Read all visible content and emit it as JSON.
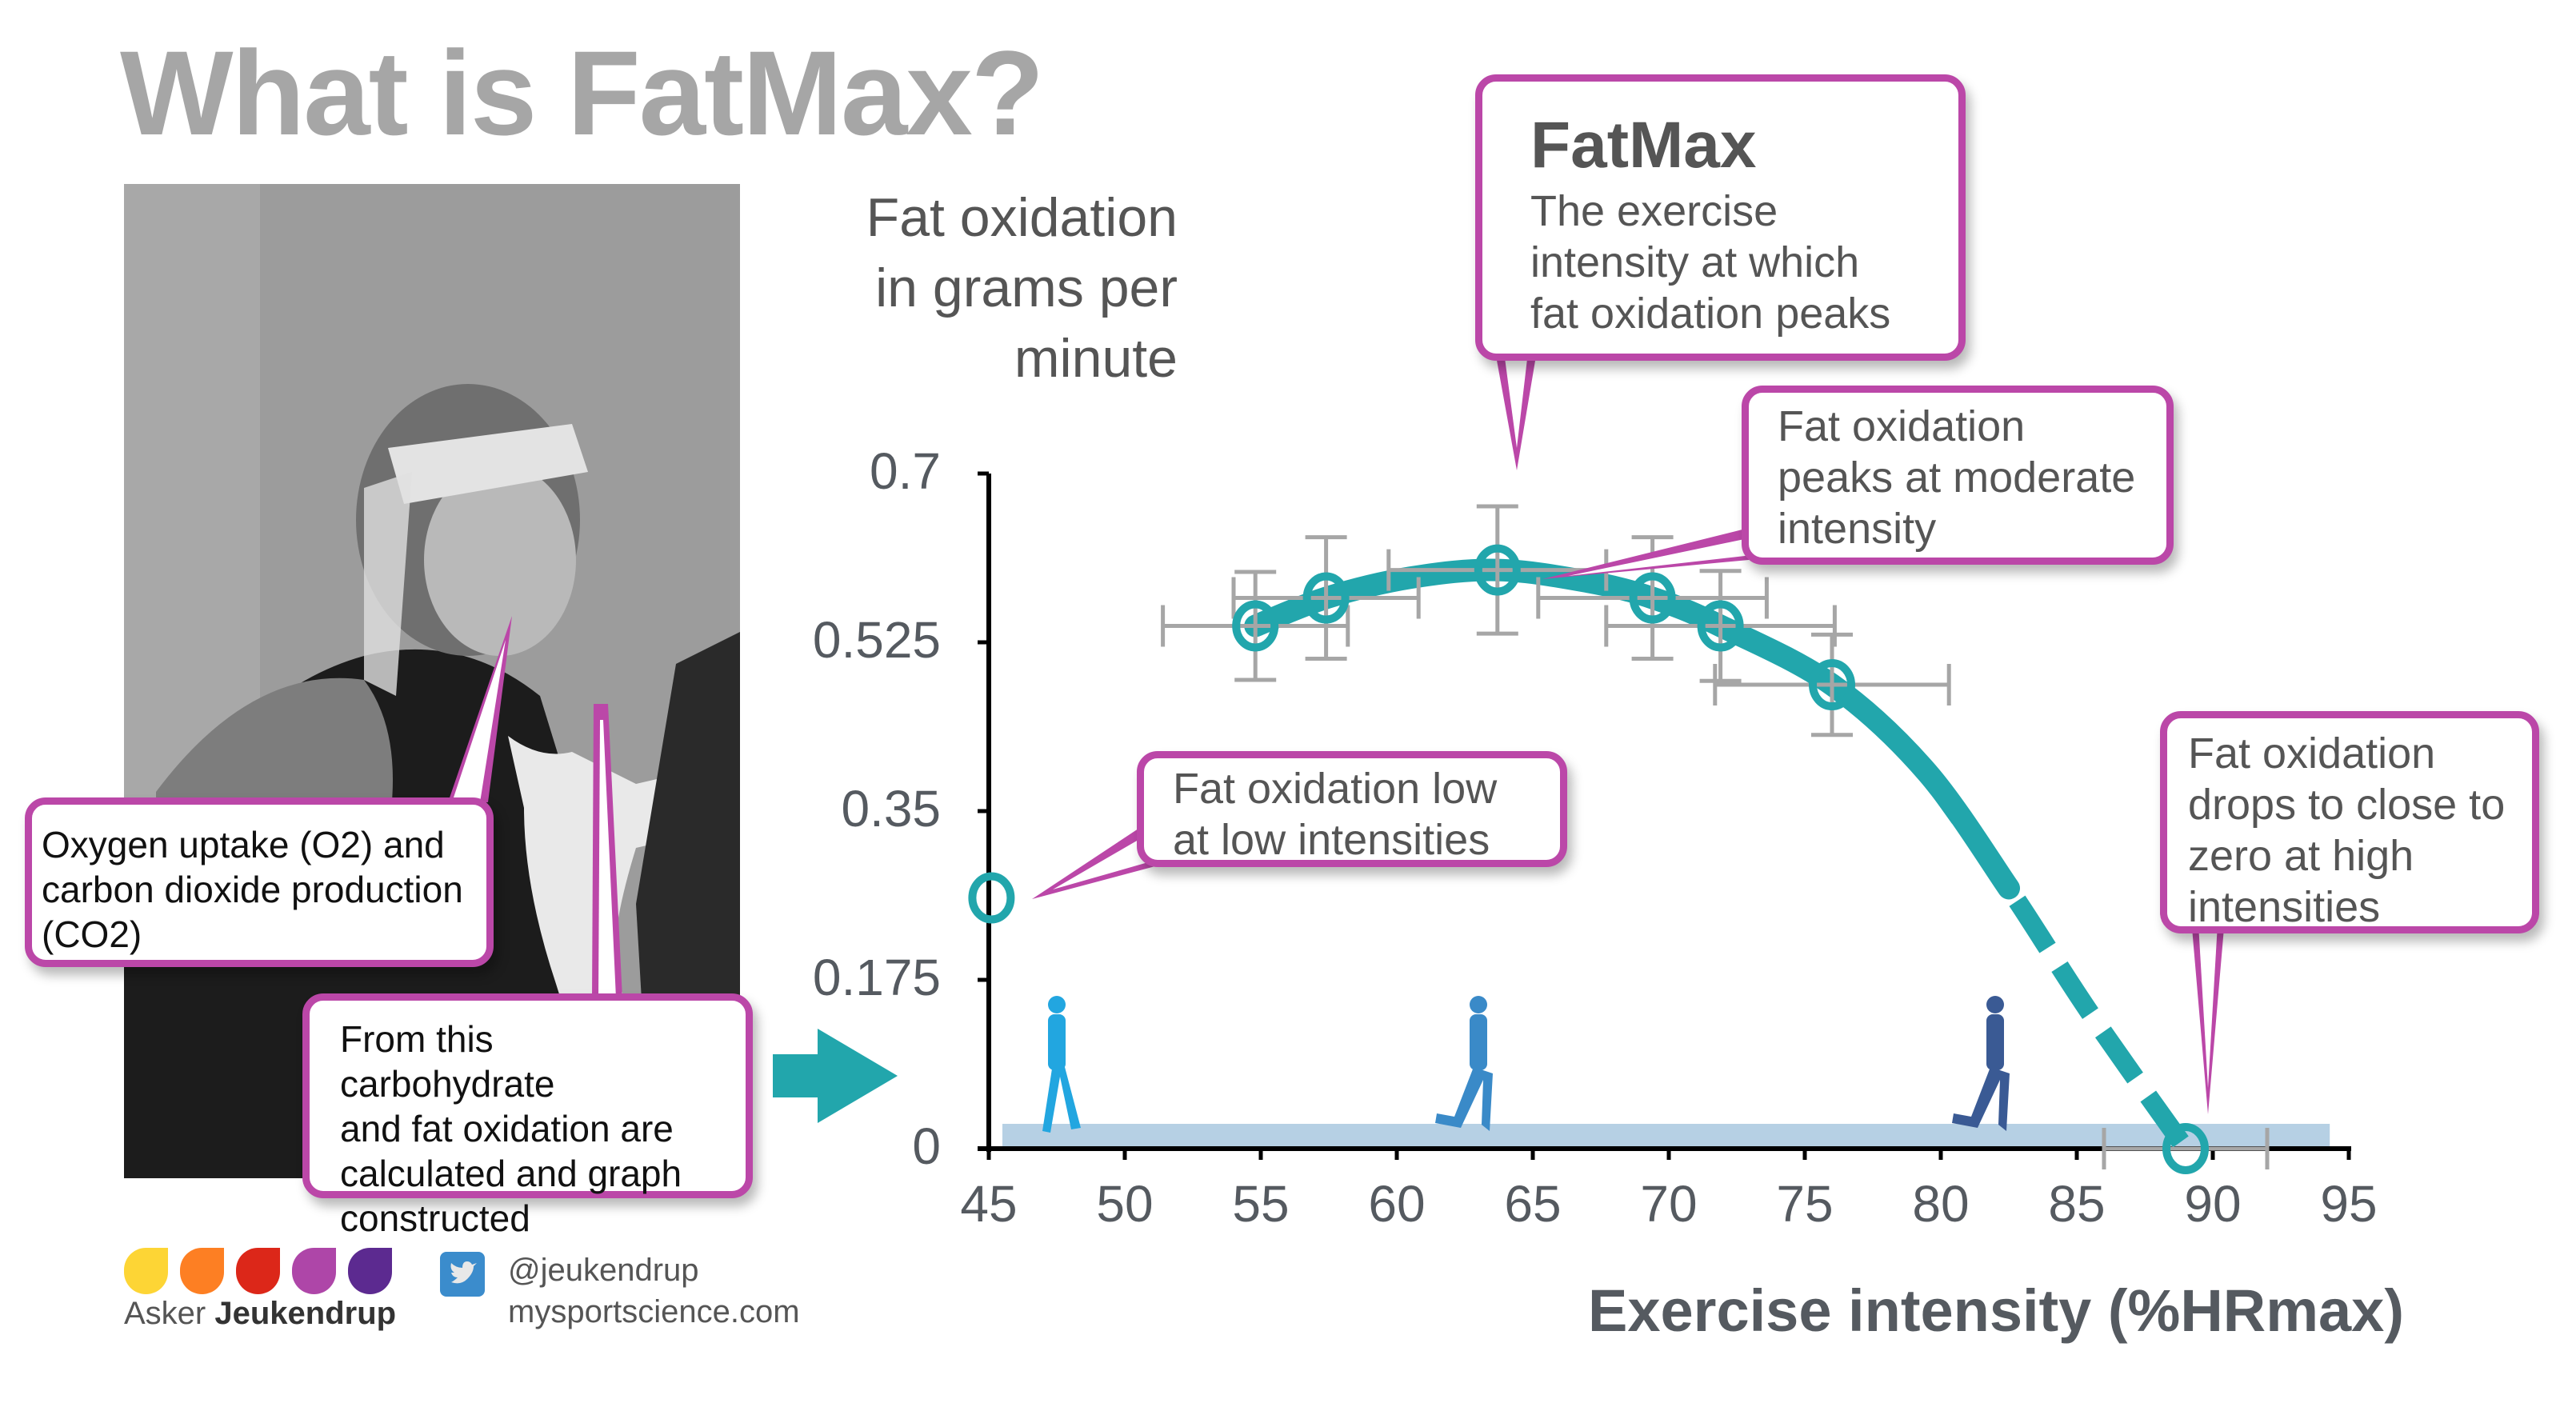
{
  "title": "What is FatMax?",
  "photo": {
    "description": "Black-and-white photo of a cyclist wearing a face mask and breathing tube for gas analysis"
  },
  "callouts": {
    "o2": [
      "Oxygen uptake (O2) and",
      "carbon dioxide production",
      "(CO2)"
    ],
    "calc": [
      "From this carbohydrate",
      "and fat oxidation are",
      "calculated and graph",
      "constructed"
    ],
    "fatmax_head": "FatMax",
    "fatmax": [
      "The exercise",
      "intensity at which",
      "fat oxidation peaks"
    ],
    "peaks": [
      "Fat oxidation",
      "peaks at moderate",
      "intensity"
    ],
    "low": [
      "Fat oxidation low",
      "at low intensities"
    ],
    "high": [
      "Fat oxidation",
      "drops to close to",
      "zero at high",
      "intensities"
    ]
  },
  "colors": {
    "accent_teal": "#22a6ac",
    "callout_border": "#bb47a8",
    "error_bar": "#a6a6a6",
    "band": "#b6d0e4",
    "walker": "#22a6e0",
    "jogger": "#3a8ac8",
    "runner": "#3a5a94"
  },
  "chart_data": {
    "type": "scatter",
    "title": "",
    "ylabel": [
      "Fat oxidation",
      "in grams per",
      "minute"
    ],
    "xlabel": "Exercise intensity (%HRmax)",
    "xlim": [
      45,
      95
    ],
    "ylim": [
      0,
      0.7
    ],
    "xticks": [
      "45",
      "50",
      "55",
      "60",
      "65",
      "70",
      "75",
      "80",
      "85",
      "90",
      "95"
    ],
    "yticks": [
      "0",
      "0.175",
      "0.35",
      "0.525",
      "0.7"
    ],
    "grid": false,
    "series": [
      {
        "name": "Fat oxidation",
        "points": [
          {
            "x": 45.1,
            "y": 0.26
          },
          {
            "x": 54.8,
            "y": 0.542,
            "xerr": 3.4,
            "yerr": 0.056
          },
          {
            "x": 57.4,
            "y": 0.571,
            "xerr": 3.4,
            "yerr": 0.063
          },
          {
            "x": 63.7,
            "y": 0.6,
            "xerr": 4.0,
            "yerr": 0.066
          },
          {
            "x": 69.4,
            "y": 0.571,
            "xerr": 4.2,
            "yerr": 0.063
          },
          {
            "x": 71.9,
            "y": 0.542,
            "xerr": 4.2,
            "yerr": 0.057
          },
          {
            "x": 76.0,
            "y": 0.481,
            "xerr": 4.3,
            "yerr": 0.052
          },
          {
            "x": 89.0,
            "y": 0.0,
            "xerr": 3.0
          }
        ]
      }
    ],
    "curve": [
      {
        "x": 54.8,
        "y": 0.542
      },
      {
        "x": 57.4,
        "y": 0.571
      },
      {
        "x": 60.5,
        "y": 0.592
      },
      {
        "x": 63.7,
        "y": 0.6
      },
      {
        "x": 67.0,
        "y": 0.588
      },
      {
        "x": 69.4,
        "y": 0.571
      },
      {
        "x": 71.9,
        "y": 0.542
      },
      {
        "x": 76.0,
        "y": 0.481
      },
      {
        "x": 79.5,
        "y": 0.39
      },
      {
        "x": 82.5,
        "y": 0.27
      },
      {
        "x": 85.5,
        "y": 0.14
      },
      {
        "x": 89.0,
        "y": 0.0
      }
    ],
    "dashed_from_x": 80.5,
    "activity_icons": [
      {
        "name": "walking",
        "x": 47.5
      },
      {
        "name": "jogging",
        "x": 63.0
      },
      {
        "name": "running",
        "x": 82.0
      }
    ]
  },
  "footer": {
    "name_first": "Asker",
    "name_last": "Jeukendrup",
    "twitter_handle": "@jeukendrup",
    "website": "mysportscience.com",
    "logo_colors": [
      "#fdd535",
      "#fd7f23",
      "#dc2719",
      "#ae46a8",
      "#5c2a90"
    ]
  }
}
